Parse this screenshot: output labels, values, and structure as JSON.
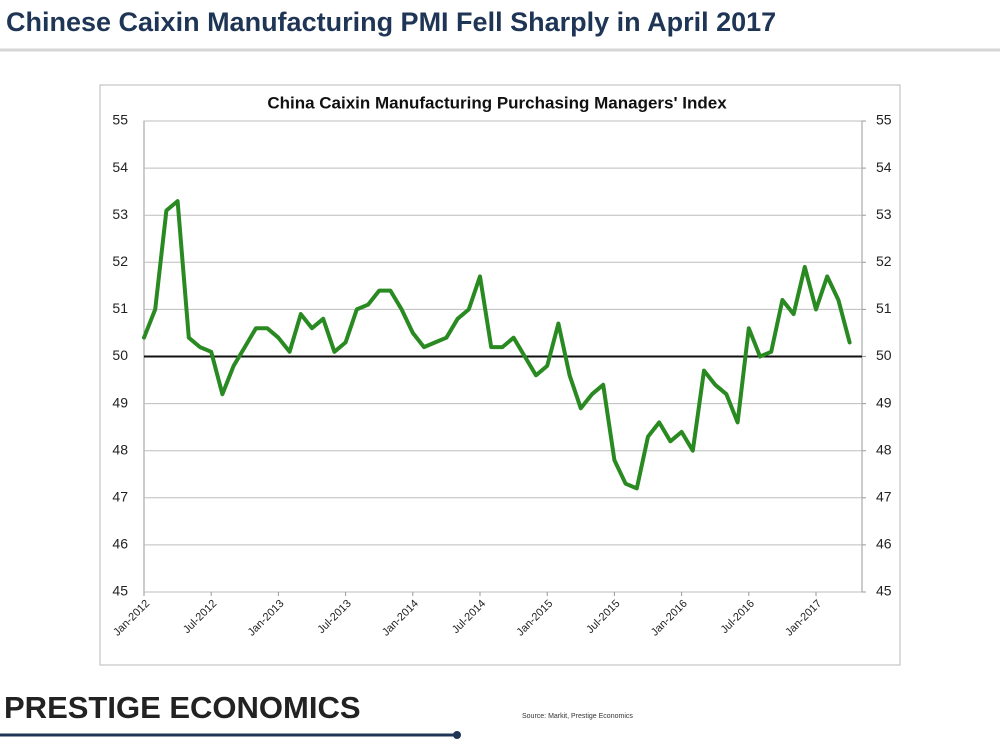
{
  "slide_title": "Chinese Caixin Manufacturing PMI Fell Sharply in April 2017",
  "logo": "PRESTIGE ECONOMICS",
  "source": "Source: Markit, Prestige Economics",
  "chart_data": {
    "type": "line",
    "title": "China Caixin Manufacturing Purchasing Managers' Index",
    "categories": [
      "Jan-2012",
      null,
      null,
      null,
      null,
      null,
      "Jul-2012",
      null,
      null,
      null,
      null,
      null,
      "Jan-2013",
      null,
      null,
      null,
      null,
      null,
      "Jul-2013",
      null,
      null,
      null,
      null,
      null,
      "Jan-2014",
      null,
      null,
      null,
      null,
      null,
      "Jul-2014",
      null,
      null,
      null,
      null,
      null,
      "Jan-2015",
      null,
      null,
      null,
      null,
      null,
      "Jul-2015",
      null,
      null,
      null,
      null,
      null,
      "Jan-2016",
      null,
      null,
      null,
      null,
      null,
      "Jul-2016",
      null,
      null,
      null,
      null,
      null,
      "Jan-2017",
      null,
      null,
      null
    ],
    "series": [
      {
        "name": "China Caixin Manufacturing PMI",
        "color": "#2a8a22",
        "values": [
          50.4,
          51.0,
          53.1,
          53.3,
          50.4,
          50.2,
          50.1,
          49.2,
          49.8,
          50.2,
          50.6,
          50.6,
          50.4,
          50.1,
          50.9,
          50.6,
          50.8,
          50.1,
          50.3,
          51.0,
          51.1,
          51.4,
          51.4,
          51.0,
          50.5,
          50.2,
          50.3,
          50.4,
          50.8,
          51.0,
          51.7,
          50.2,
          50.2,
          50.4,
          50.0,
          49.6,
          49.8,
          50.7,
          49.6,
          48.9,
          49.2,
          49.4,
          47.8,
          47.3,
          47.2,
          48.3,
          48.6,
          48.2,
          48.4,
          48.0,
          49.7,
          49.4,
          49.2,
          48.6,
          50.6,
          50.0,
          50.1,
          51.2,
          50.9,
          51.9,
          51.0,
          51.7,
          51.2,
          50.3
        ]
      }
    ],
    "ylim": [
      45,
      55
    ],
    "yticks": [
      45,
      46,
      47,
      48,
      49,
      50,
      51,
      52,
      53,
      54,
      55
    ],
    "y2lim": [
      45,
      55
    ],
    "y2ticks": [
      45,
      46,
      47,
      48,
      49,
      50,
      51,
      52,
      53,
      54,
      55
    ],
    "reference_line": 50,
    "grid": true
  }
}
